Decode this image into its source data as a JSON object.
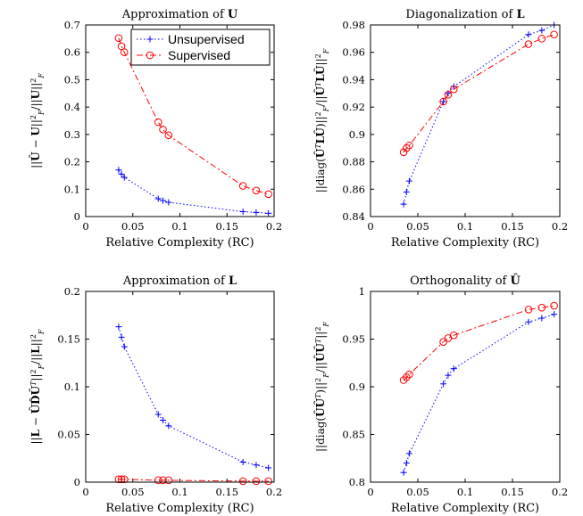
{
  "chart_data": [
    {
      "type": "line",
      "title": "Approximation of U",
      "title_parts": [
        {
          "t": "Approximation of "
        },
        {
          "t": "U",
          "b": true
        }
      ],
      "xlabel": "Relative Complexity (RC)",
      "ylabel": "||Û − U||²F / ||U||²F",
      "ylabel_parts": [
        {
          "t": "||"
        },
        {
          "t": "Û",
          "b": true
        },
        {
          "t": " − "
        },
        {
          "t": "U",
          "b": true
        },
        {
          "t": "||"
        },
        {
          "t": "2",
          "sup": true
        },
        {
          "t": "F",
          "sub": true,
          "i": true
        },
        {
          "t": "/||"
        },
        {
          "t": "U",
          "b": true
        },
        {
          "t": "||"
        },
        {
          "t": "2",
          "sup": true
        },
        {
          "t": "F",
          "sub": true,
          "i": true
        }
      ],
      "xlim": [
        0,
        0.2
      ],
      "ylim": [
        0,
        0.7
      ],
      "xticks": [
        "0",
        "0.05",
        "0.1",
        "0.15",
        "0.2"
      ],
      "yticks": [
        "0",
        "0.1",
        "0.2",
        "0.3",
        "0.4",
        "0.5",
        "0.6",
        "0.7"
      ],
      "legend": "top-right",
      "series": [
        {
          "name": "Unsupervised",
          "color": "#0000ff",
          "marker": "plus",
          "dash": "dotted",
          "x": [
            0.035,
            0.038,
            0.041,
            0.077,
            0.082,
            0.088,
            0.167,
            0.181,
            0.194
          ],
          "y": [
            0.17,
            0.155,
            0.143,
            0.065,
            0.058,
            0.052,
            0.018,
            0.015,
            0.012
          ]
        },
        {
          "name": "Supervised",
          "color": "#ff0000",
          "marker": "circle",
          "dash": "dashdot",
          "x": [
            0.035,
            0.038,
            0.041,
            0.077,
            0.082,
            0.088,
            0.167,
            0.181,
            0.194
          ],
          "y": [
            0.652,
            0.622,
            0.6,
            0.345,
            0.318,
            0.297,
            0.112,
            0.095,
            0.082
          ]
        }
      ]
    },
    {
      "type": "line",
      "title": "Diagonalization of L",
      "title_parts": [
        {
          "t": "Diagonalization of "
        },
        {
          "t": "L",
          "b": true
        }
      ],
      "xlabel": "Relative Complexity (RC)",
      "ylabel": "||diag(ÛᵀLÛ)||²F / ||ÛᵀLÛ||²F",
      "ylabel_parts": [
        {
          "t": "||diag("
        },
        {
          "t": "Û",
          "b": true
        },
        {
          "t": "T",
          "sup": true,
          "i": true
        },
        {
          "t": "L",
          "b": true
        },
        {
          "t": "Û",
          "b": true
        },
        {
          "t": ")||"
        },
        {
          "t": "2",
          "sup": true
        },
        {
          "t": "F",
          "sub": true,
          "i": true
        },
        {
          "t": "/||"
        },
        {
          "t": "Û",
          "b": true
        },
        {
          "t": "T",
          "sup": true,
          "i": true
        },
        {
          "t": "L",
          "b": true
        },
        {
          "t": "Û",
          "b": true
        },
        {
          "t": "||"
        },
        {
          "t": "2",
          "sup": true
        },
        {
          "t": "F",
          "sub": true,
          "i": true
        }
      ],
      "xlim": [
        0,
        0.2
      ],
      "ylim": [
        0.84,
        0.98
      ],
      "xticks": [
        "0",
        "0.05",
        "0.1",
        "0.15",
        "0.2"
      ],
      "yticks": [
        "0.84",
        "0.86",
        "0.88",
        "0.9",
        "0.92",
        "0.94",
        "0.96",
        "0.98"
      ],
      "series": [
        {
          "name": "Unsupervised",
          "color": "#0000ff",
          "marker": "plus",
          "dash": "dotted",
          "x": [
            0.035,
            0.038,
            0.041,
            0.077,
            0.082,
            0.088,
            0.167,
            0.181,
            0.194
          ],
          "y": [
            0.849,
            0.858,
            0.866,
            0.924,
            0.93,
            0.935,
            0.973,
            0.976,
            0.98
          ]
        },
        {
          "name": "Supervised",
          "color": "#ff0000",
          "marker": "circle",
          "dash": "dashdot",
          "x": [
            0.035,
            0.038,
            0.041,
            0.077,
            0.082,
            0.088,
            0.167,
            0.181,
            0.194
          ],
          "y": [
            0.887,
            0.89,
            0.892,
            0.924,
            0.929,
            0.933,
            0.966,
            0.97,
            0.973
          ]
        }
      ]
    },
    {
      "type": "line",
      "title": "Approximation of L",
      "title_parts": [
        {
          "t": "Approximation of "
        },
        {
          "t": "L",
          "b": true
        }
      ],
      "xlabel": "Relative Complexity (RC)",
      "ylabel": "||L − ÛD̂Ûᵀ||²F / ||L||²F",
      "ylabel_parts": [
        {
          "t": "||"
        },
        {
          "t": "L",
          "b": true
        },
        {
          "t": " − "
        },
        {
          "t": "ÛD̂Û",
          "b": true
        },
        {
          "t": "T",
          "sup": true,
          "i": true
        },
        {
          "t": "||"
        },
        {
          "t": "2",
          "sup": true
        },
        {
          "t": "F",
          "sub": true,
          "i": true
        },
        {
          "t": "/||"
        },
        {
          "t": "L",
          "b": true
        },
        {
          "t": "||"
        },
        {
          "t": "2",
          "sup": true
        },
        {
          "t": "F",
          "sub": true,
          "i": true
        }
      ],
      "xlim": [
        0,
        0.2
      ],
      "ylim": [
        0,
        0.2
      ],
      "xticks": [
        "0",
        "0.05",
        "0.1",
        "0.15",
        "0.2"
      ],
      "yticks": [
        "0",
        "0.05",
        "0.1",
        "0.15",
        "0.2"
      ],
      "series": [
        {
          "name": "Unsupervised",
          "color": "#0000ff",
          "marker": "plus",
          "dash": "dotted",
          "x": [
            0.035,
            0.038,
            0.041,
            0.077,
            0.082,
            0.088,
            0.167,
            0.181,
            0.194
          ],
          "y": [
            0.163,
            0.152,
            0.142,
            0.071,
            0.065,
            0.059,
            0.021,
            0.018,
            0.015
          ]
        },
        {
          "name": "Supervised",
          "color": "#ff0000",
          "marker": "circle",
          "dash": "dashdot",
          "x": [
            0.035,
            0.038,
            0.041,
            0.077,
            0.082,
            0.088,
            0.167,
            0.181,
            0.194
          ],
          "y": [
            0.003,
            0.003,
            0.003,
            0.002,
            0.002,
            0.002,
            0.001,
            0.001,
            0.001
          ]
        }
      ]
    },
    {
      "type": "line",
      "title": "Orthogonality of Û",
      "title_parts": [
        {
          "t": "Orthogonality of "
        },
        {
          "t": "Û",
          "b": true
        }
      ],
      "xlabel": "Relative Complexity (RC)",
      "ylabel": "||diag(ÛÛᵀ)||²F / ||ÛÛᵀ||²F",
      "ylabel_parts": [
        {
          "t": "||diag("
        },
        {
          "t": "ÛÛ",
          "b": true
        },
        {
          "t": "T",
          "sup": true,
          "i": true
        },
        {
          "t": ")||"
        },
        {
          "t": "2",
          "sup": true
        },
        {
          "t": "F",
          "sub": true,
          "i": true
        },
        {
          "t": "/||"
        },
        {
          "t": "ÛÛ",
          "b": true
        },
        {
          "t": "T",
          "sup": true,
          "i": true
        },
        {
          "t": "||"
        },
        {
          "t": "2",
          "sup": true
        },
        {
          "t": "F",
          "sub": true,
          "i": true
        }
      ],
      "xlim": [
        0,
        0.2
      ],
      "ylim": [
        0.8,
        1
      ],
      "xticks": [
        "0",
        "0.05",
        "0.1",
        "0.15",
        "0.2"
      ],
      "yticks": [
        "0.8",
        "0.85",
        "0.9",
        "0.95",
        "1"
      ],
      "series": [
        {
          "name": "Unsupervised",
          "color": "#0000ff",
          "marker": "plus",
          "dash": "dotted",
          "x": [
            0.035,
            0.038,
            0.041,
            0.077,
            0.082,
            0.088,
            0.167,
            0.181,
            0.194
          ],
          "y": [
            0.81,
            0.82,
            0.83,
            0.903,
            0.912,
            0.919,
            0.968,
            0.972,
            0.976
          ]
        },
        {
          "name": "Supervised",
          "color": "#ff0000",
          "marker": "circle",
          "dash": "dashdot",
          "x": [
            0.035,
            0.038,
            0.041,
            0.077,
            0.082,
            0.088,
            0.167,
            0.181,
            0.194
          ],
          "y": [
            0.907,
            0.91,
            0.913,
            0.947,
            0.951,
            0.954,
            0.981,
            0.983,
            0.985
          ]
        }
      ]
    }
  ]
}
